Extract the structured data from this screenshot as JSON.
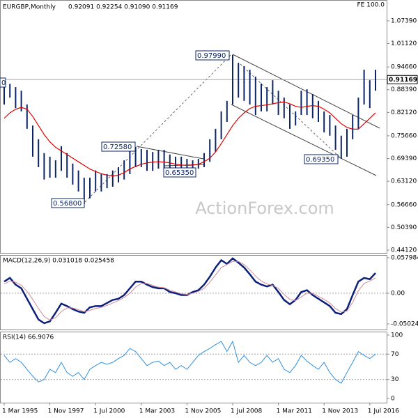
{
  "chart_data": [
    {
      "type": "ohlc",
      "title": "EURGBP,Monthly",
      "subtitle": "0.92091 0.92254 0.91090 0.91169",
      "corner_note": "FE 100.0",
      "watermark": "ActionForex.com",
      "color": "#0b2566",
      "high": [
        0.91,
        0.9,
        0.891,
        0.881,
        0.843,
        0.785,
        0.747,
        0.709,
        0.699,
        0.689,
        0.728,
        0.709,
        0.68,
        0.661,
        0.641,
        0.641,
        0.661,
        0.651,
        0.651,
        0.661,
        0.67,
        0.689,
        0.718,
        0.7258,
        0.72,
        0.718,
        0.712,
        0.718,
        0.718,
        0.705,
        0.699,
        0.699,
        0.693,
        0.689,
        0.693,
        0.709,
        0.747,
        0.776,
        0.824,
        0.853,
        0.9799,
        0.958,
        0.949,
        0.939,
        0.92,
        0.901,
        0.891,
        0.91,
        0.881,
        0.862,
        0.843,
        0.824,
        0.881,
        0.885,
        0.872,
        0.853,
        0.824,
        0.814,
        0.785,
        0.757,
        0.776,
        0.814,
        0.862,
        0.939,
        0.91,
        0.939
      ],
      "low": [
        0.843,
        0.862,
        0.833,
        0.824,
        0.776,
        0.699,
        0.67,
        0.636,
        0.641,
        0.641,
        0.66,
        0.641,
        0.622,
        0.603,
        0.568,
        0.584,
        0.603,
        0.603,
        0.612,
        0.616,
        0.628,
        0.636,
        0.651,
        0.67,
        0.67,
        0.66,
        0.66,
        0.666,
        0.66,
        0.655,
        0.6535,
        0.66,
        0.66,
        0.66,
        0.666,
        0.67,
        0.685,
        0.712,
        0.747,
        0.795,
        0.843,
        0.862,
        0.853,
        0.843,
        0.814,
        0.824,
        0.824,
        0.843,
        0.814,
        0.805,
        0.776,
        0.785,
        0.814,
        0.814,
        0.805,
        0.795,
        0.766,
        0.757,
        0.718,
        0.6935,
        0.699,
        0.747,
        0.776,
        0.843,
        0.833,
        0.881
      ],
      "ma": {
        "color": "#e00000",
        "values": [
          0.805,
          0.82,
          0.83,
          0.835,
          0.83,
          0.81,
          0.785,
          0.76,
          0.74,
          0.725,
          0.715,
          0.705,
          0.695,
          0.685,
          0.675,
          0.665,
          0.658,
          0.652,
          0.648,
          0.646,
          0.648,
          0.655,
          0.665,
          0.672,
          0.678,
          0.682,
          0.684,
          0.685,
          0.684,
          0.682,
          0.678,
          0.676,
          0.675,
          0.676,
          0.678,
          0.685,
          0.695,
          0.712,
          0.735,
          0.76,
          0.785,
          0.805,
          0.82,
          0.832,
          0.838,
          0.84,
          0.842,
          0.845,
          0.848,
          0.85,
          0.845,
          0.838,
          0.835,
          0.838,
          0.84,
          0.838,
          0.83,
          0.82,
          0.805,
          0.79,
          0.78,
          0.775,
          0.775,
          0.79,
          0.805,
          0.82
        ]
      },
      "last_price": {
        "value": 0.91169,
        "label": "0.91169"
      },
      "annotations": [
        "0",
        "0.97990",
        "0.72580",
        "0.65350",
        "0.56800",
        "0.69350"
      ],
      "ylim": [
        0.4335,
        1.1314
      ],
      "yticks": [
        {
          "value": 1.0739,
          "label": "1.07390"
        },
        {
          "value": 1.0112,
          "label": "1.01120"
        },
        {
          "value": 0.9466,
          "label": "0.94660"
        },
        {
          "value": 0.8839,
          "label": "0.88390"
        },
        {
          "value": 0.8212,
          "label": "0.82120"
        },
        {
          "value": 0.7566,
          "label": "0.75660"
        },
        {
          "value": 0.6939,
          "label": "0.69390"
        },
        {
          "value": 0.6312,
          "label": "0.63120"
        },
        {
          "value": 0.5666,
          "label": "0.56660"
        },
        {
          "value": 0.5039,
          "label": "0.50390"
        },
        {
          "value": 0.4412,
          "label": "0.44120"
        }
      ]
    },
    {
      "type": "line",
      "title": "MACD(12,26,9) 0.031018 0.025458",
      "series": [
        {
          "color": "#0b1f7a",
          "values": [
            0.019,
            0.025,
            0.014,
            0.008,
            -0.009,
            -0.026,
            -0.043,
            -0.049,
            -0.046,
            -0.032,
            -0.017,
            -0.021,
            -0.026,
            -0.03,
            -0.032,
            -0.023,
            -0.021,
            -0.021,
            -0.016,
            -0.011,
            -0.009,
            -0.003,
            0.008,
            0.019,
            0.019,
            0.014,
            0.01,
            0.008,
            0.008,
            0.002,
            0,
            -0.003,
            -0.003,
            0.002,
            0.005,
            0.014,
            0.027,
            0.042,
            0.054,
            0.048,
            0.057,
            0.05,
            0.042,
            0.031,
            0.019,
            0.014,
            0.011,
            0.014,
            0.002,
            -0.011,
            -0.018,
            -0.011,
            0.002,
            0.005,
            -0.003,
            -0.009,
            -0.015,
            -0.021,
            -0.032,
            -0.034,
            -0.026,
            -0.003,
            0.019,
            0.025,
            0.023,
            0.033
          ]
        },
        {
          "color": "#d08a98",
          "values": [
            0.015,
            0.02,
            0.018,
            0.013,
            0.003,
            -0.01,
            -0.025,
            -0.038,
            -0.044,
            -0.04,
            -0.03,
            -0.024,
            -0.024,
            -0.027,
            -0.03,
            -0.028,
            -0.025,
            -0.023,
            -0.02,
            -0.016,
            -0.012,
            -0.007,
            0.0,
            0.01,
            0.016,
            0.016,
            0.013,
            0.01,
            0.009,
            0.005,
            0.002,
            -0.001,
            -0.002,
            0.0,
            0.003,
            0.008,
            0.018,
            0.03,
            0.042,
            0.047,
            0.052,
            0.052,
            0.047,
            0.038,
            0.028,
            0.02,
            0.015,
            0.013,
            0.008,
            -0.002,
            -0.01,
            -0.012,
            -0.006,
            0.0,
            0.0,
            -0.005,
            -0.01,
            -0.016,
            -0.025,
            -0.031,
            -0.029,
            -0.015,
            0.004,
            0.016,
            0.02,
            0.025
          ]
        }
      ],
      "ylim": [
        -0.05935,
        0.06254
      ],
      "yticks": [
        0.057984,
        {
          "value": 0,
          "label": "0.00"
        },
        -0.050241
      ]
    },
    {
      "type": "line",
      "title": "RSI(14) 66.9076",
      "categories": [
        "1 Mar 1995",
        null,
        null,
        null,
        null,
        null,
        null,
        null,
        "1 Nov 1997",
        null,
        null,
        null,
        null,
        null,
        null,
        null,
        "1 Jul 2000",
        null,
        null,
        null,
        null,
        null,
        null,
        null,
        "1 Mar 2003",
        null,
        null,
        null,
        null,
        null,
        null,
        null,
        "1 Nov 2005",
        null,
        null,
        null,
        null,
        null,
        null,
        null,
        "1 Jul 2008",
        null,
        null,
        null,
        null,
        null,
        null,
        null,
        "1 Mar 2011",
        null,
        null,
        null,
        null,
        null,
        null,
        null,
        "1 Nov 2013",
        null,
        null,
        null,
        null,
        null,
        null,
        null,
        "1 Jul 2016",
        null
      ],
      "series": [
        {
          "color": "#2f8fe0",
          "values": [
            68,
            57,
            63,
            57,
            46,
            35,
            26,
            30,
            46,
            41,
            57,
            41,
            35,
            41,
            30,
            46,
            52,
            57,
            54,
            57,
            63,
            68,
            79,
            74,
            63,
            52,
            57,
            59,
            52,
            57,
            46,
            52,
            46,
            57,
            68,
            74,
            79,
            85,
            90,
            74,
            90,
            57,
            68,
            57,
            52,
            57,
            68,
            57,
            63,
            46,
            41,
            52,
            68,
            59,
            52,
            46,
            57,
            41,
            30,
            24,
            41,
            57,
            74,
            68,
            63,
            70
          ]
        }
      ],
      "ylim": [
        -6.6,
        105.5
      ],
      "yticks": [
        100,
        70,
        30,
        0
      ],
      "levels": [
        70,
        30
      ]
    }
  ]
}
